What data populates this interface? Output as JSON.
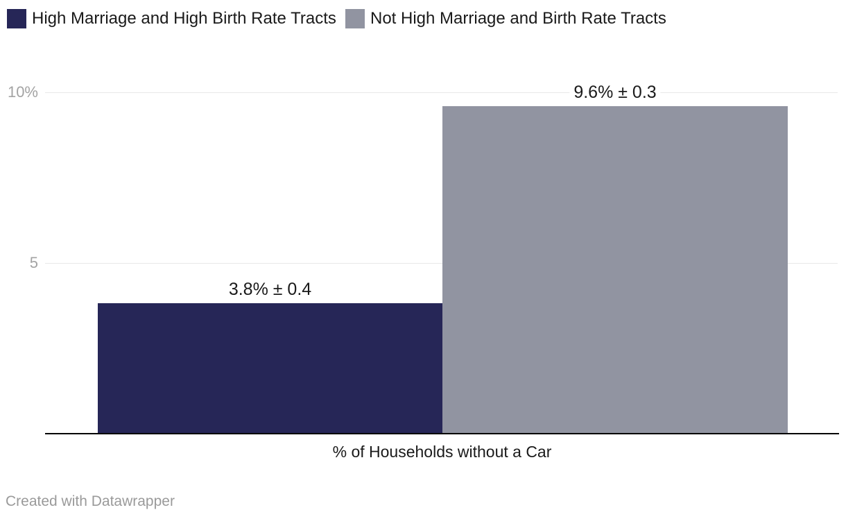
{
  "legend": {
    "items": [
      {
        "label": "High Marriage and High Birth Rate Tracts",
        "color": "#262657"
      },
      {
        "label": "Not High Marriage and Birth Rate Tracts",
        "color": "#9194a1"
      }
    ]
  },
  "chart_data": {
    "type": "bar",
    "title": "",
    "xlabel": "% of Households without a Car",
    "ylabel": "",
    "ylim": [
      0,
      10
    ],
    "grid": true,
    "legend_position": "top",
    "categories": [
      "High Marriage and High Birth Rate Tracts",
      "Not High Marriage and Birth Rate Tracts"
    ],
    "series": [
      {
        "name": "High Marriage and High Birth Rate Tracts",
        "value": 3.8,
        "error": 0.4,
        "label": "3.8% ± 0.4",
        "color": "#262657"
      },
      {
        "name": "Not High Marriage and Birth Rate Tracts",
        "value": 9.6,
        "error": 0.3,
        "label": "9.6% ± 0.3",
        "color": "#9194a1"
      }
    ],
    "yticks": [
      {
        "value": 5,
        "label": "5"
      },
      {
        "value": 10,
        "label": "10%"
      }
    ]
  },
  "footer": {
    "credit": "Created with Datawrapper"
  }
}
